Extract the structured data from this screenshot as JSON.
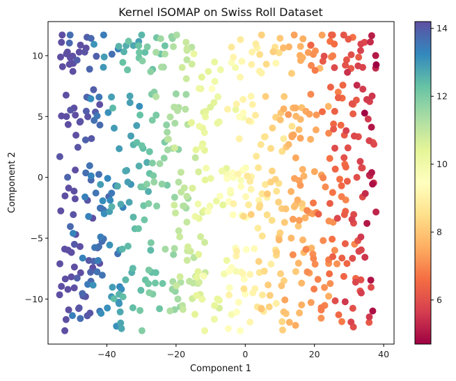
{
  "chart_data": {
    "type": "scatter",
    "title": "Kernel ISOMAP on Swiss Roll Dataset",
    "xlabel": "Component 1",
    "ylabel": "Component 2",
    "xlim": [
      -57,
      43
    ],
    "ylim": [
      -13.7,
      12.8
    ],
    "xticks": [
      -40,
      -20,
      0,
      20,
      40
    ],
    "yticks": [
      -10,
      -5,
      0,
      5,
      10
    ],
    "grid": false,
    "colorbar": {
      "cmap": "Spectral",
      "range": [
        4.7,
        14.2
      ],
      "ticks": [
        6,
        8,
        10,
        12,
        14
      ]
    },
    "band_centers_y": [
      11,
      9.5,
      6,
      3.5,
      0,
      -2.5,
      -6,
      -8.5,
      -11
    ],
    "point_count": 750,
    "sampling_seed": 42
  }
}
